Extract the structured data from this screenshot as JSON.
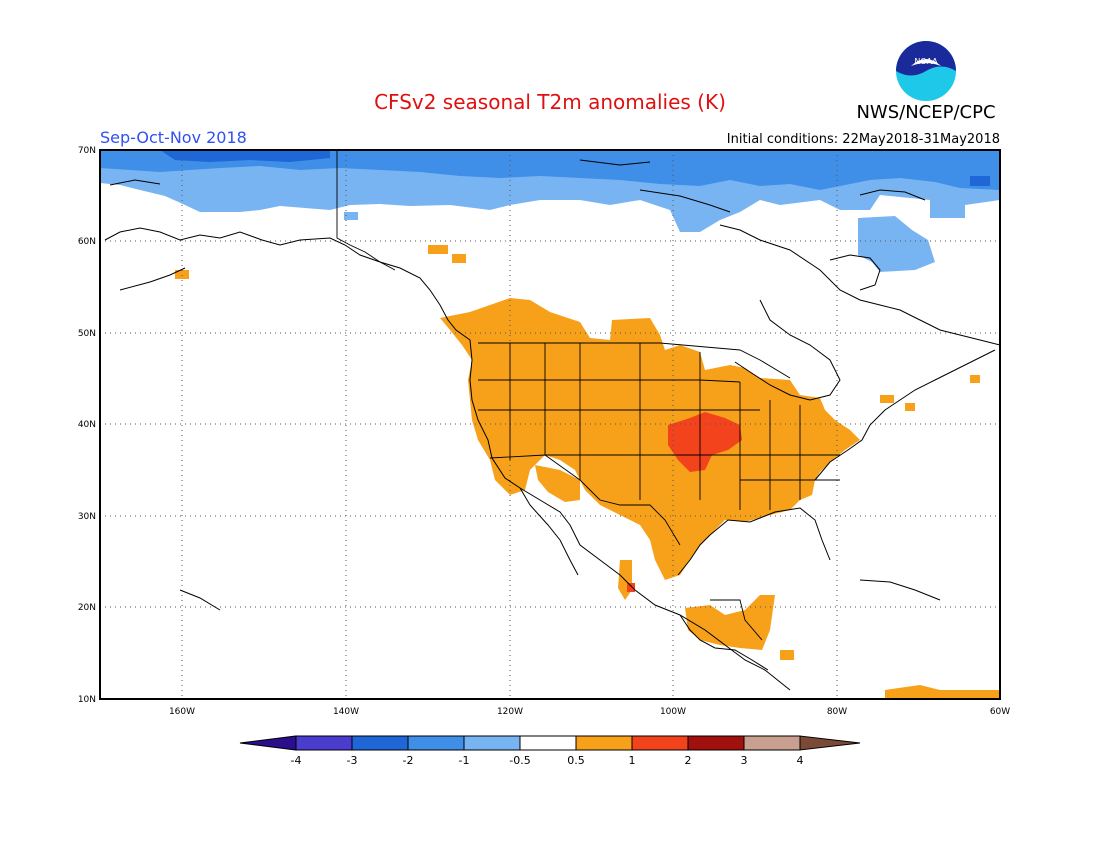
{
  "header": {
    "title": "CFSv2 seasonal T2m anomalies (K)",
    "season": "Sep-Oct-Nov 2018",
    "initial_conditions": "Initial conditions: 22May2018-31May2018",
    "agency": "NWS/NCEP/CPC",
    "logo_text": "NOAA"
  },
  "map": {
    "lon_range": [
      -170,
      -60
    ],
    "lat_range": [
      10,
      70
    ],
    "lon_ticks": [
      "160W",
      "140W",
      "120W",
      "100W",
      "80W",
      "60W"
    ],
    "lat_ticks": [
      "10N",
      "20N",
      "30N",
      "40N",
      "50N",
      "60N",
      "70N"
    ],
    "grid": "dotted"
  },
  "colorbar": {
    "labels": [
      "-4",
      "-3",
      "-2",
      "-1",
      "-0.5",
      "0.5",
      "1",
      "2",
      "3",
      "4"
    ],
    "colors": [
      "#2a0e8c",
      "#4a3ccc",
      "#1f66d6",
      "#3f8ee8",
      "#79b4f2",
      "#ffffff",
      "#f7a01a",
      "#f2431c",
      "#a0100c",
      "#c9a090",
      "#7a4a36"
    ]
  },
  "anomaly_regions": [
    {
      "level": "cold_-1",
      "color": "#79b4f2",
      "area": "Arctic / northern Canada & Alaska"
    },
    {
      "level": "cold_-2",
      "color": "#3f8ee8",
      "area": "High Arctic"
    },
    {
      "level": "warm_0.5",
      "color": "#f7a01a",
      "area": "Western & central USA, Mexico, Central America"
    },
    {
      "level": "warm_1",
      "color": "#f2431c",
      "area": "Central Plains"
    }
  ]
}
